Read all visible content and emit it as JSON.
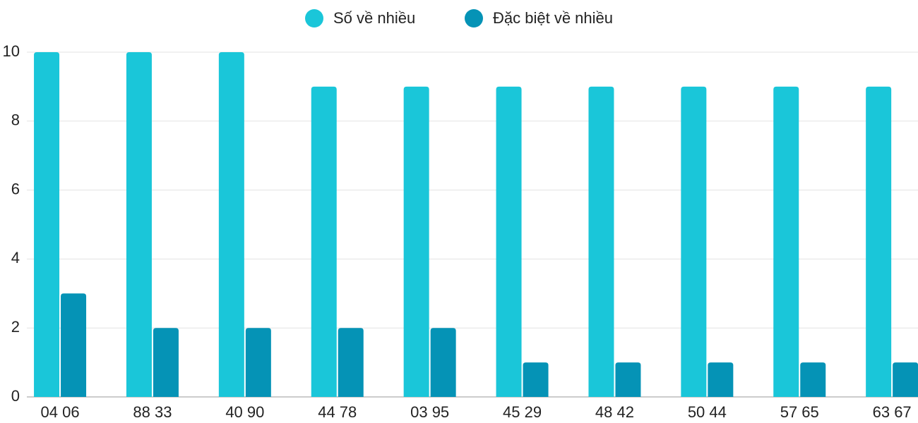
{
  "chart_data": {
    "type": "bar",
    "categories": [
      "04 06",
      "88 33",
      "40 90",
      "44 78",
      "03 95",
      "45 29",
      "48 42",
      "50 44",
      "57 65",
      "63 67"
    ],
    "series": [
      {
        "name": "Số về nhiều",
        "color": "#1ac6d9",
        "values": [
          10,
          10,
          10,
          9,
          9,
          9,
          9,
          9,
          9,
          9
        ]
      },
      {
        "name": "Đặc biệt về nhiều",
        "color": "#0593b6",
        "values": [
          3,
          2,
          2,
          2,
          2,
          1,
          1,
          1,
          1,
          1
        ]
      }
    ],
    "ylim": [
      0,
      10
    ],
    "yticks": [
      0,
      2,
      4,
      6,
      8,
      10
    ],
    "grid": true,
    "legend": "top"
  }
}
